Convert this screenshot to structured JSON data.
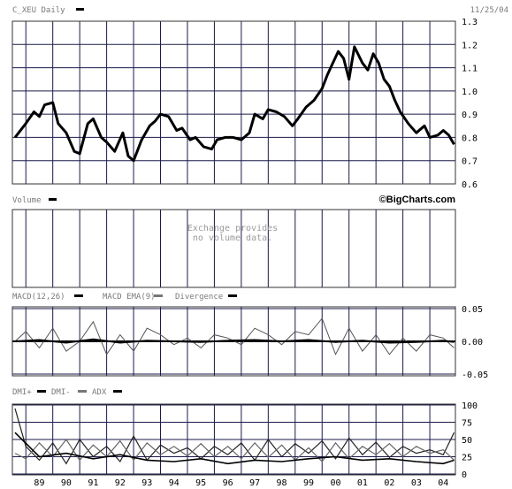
{
  "header": {
    "symbol_label": "C_XEU Daily",
    "date": "11/25/04"
  },
  "brand": "©BigCharts.com",
  "volume": {
    "label": "Volume",
    "note_line1": "Exchange provides",
    "note_line2": "no volume data."
  },
  "x_axis": {
    "tick_labels": [
      "89",
      "90",
      "91",
      "92",
      "93",
      "94",
      "95",
      "96",
      "97",
      "98",
      "99",
      "00",
      "01",
      "02",
      "03",
      "04"
    ]
  },
  "legend": {
    "macd": [
      "MACD(12,26)",
      "MACD EMA(9)",
      "Divergence"
    ],
    "dmi": [
      "DMI+",
      "DMI-",
      "ADX"
    ]
  },
  "colors": {
    "grid": "#1a1a4a",
    "price": "#000000",
    "macd": "#555555",
    "dmi_plus": "#222222",
    "dmi_minus": "#666666"
  },
  "chart_data": [
    {
      "type": "line",
      "title": "C_XEU Daily",
      "ylim": [
        0.6,
        1.3
      ],
      "yticks": [
        "1.3",
        "1.2",
        "1.1",
        "1.0",
        "0.9",
        "0.8",
        "0.7",
        "0.6"
      ],
      "x": [
        1988.6,
        1989.0,
        1989.3,
        1989.5,
        1989.7,
        1990.0,
        1990.2,
        1990.5,
        1990.8,
        1991.0,
        1991.3,
        1991.5,
        1991.8,
        1992.0,
        1992.3,
        1992.6,
        1992.8,
        1993.0,
        1993.3,
        1993.6,
        1993.8,
        1994.0,
        1994.3,
        1994.6,
        1994.8,
        1995.1,
        1995.3,
        1995.6,
        1995.9,
        1996.1,
        1996.4,
        1996.7,
        1997.0,
        1997.3,
        1997.5,
        1997.8,
        1998.0,
        1998.3,
        1998.6,
        1998.9,
        1999.1,
        1999.4,
        1999.7,
        2000.0,
        2000.2,
        2000.4,
        2000.6,
        2000.8,
        2001.0,
        2001.2,
        2001.5,
        2001.7,
        2001.9,
        2002.1,
        2002.3,
        2002.5,
        2002.7,
        2002.9,
        2003.2,
        2003.5,
        2003.8,
        2004.0,
        2004.3,
        2004.5,
        2004.7,
        2004.9
      ],
      "values": [
        0.8,
        0.86,
        0.91,
        0.89,
        0.94,
        0.95,
        0.86,
        0.82,
        0.74,
        0.73,
        0.86,
        0.88,
        0.8,
        0.78,
        0.74,
        0.82,
        0.72,
        0.7,
        0.79,
        0.85,
        0.87,
        0.9,
        0.89,
        0.83,
        0.84,
        0.79,
        0.8,
        0.76,
        0.75,
        0.79,
        0.8,
        0.8,
        0.79,
        0.82,
        0.9,
        0.88,
        0.92,
        0.91,
        0.89,
        0.85,
        0.88,
        0.93,
        0.96,
        1.01,
        1.07,
        1.12,
        1.17,
        1.14,
        1.05,
        1.19,
        1.12,
        1.09,
        1.16,
        1.12,
        1.05,
        1.02,
        0.96,
        0.91,
        0.86,
        0.82,
        0.85,
        0.8,
        0.81,
        0.83,
        0.81,
        0.77
      ]
    },
    {
      "type": "line",
      "title": "MACD(12,26)",
      "ylim": [
        -0.05,
        0.05
      ],
      "yticks": [
        "0.05",
        "0.00",
        "-0.05"
      ],
      "series": [
        {
          "name": "MACD(12,26)",
          "x": [
            1988.6,
            1989.0,
            1989.5,
            1990.0,
            1990.5,
            1991.0,
            1991.5,
            1992.0,
            1992.5,
            1993.0,
            1993.5,
            1994.0,
            1994.5,
            1995.0,
            1995.5,
            1996.0,
            1996.5,
            1997.0,
            1997.5,
            1998.0,
            1998.5,
            1999.0,
            1999.5,
            2000.0,
            2000.5,
            2001.0,
            2001.5,
            2002.0,
            2002.5,
            2003.0,
            2003.5,
            2004.0,
            2004.5,
            2004.9
          ],
          "values": [
            0.0,
            0.015,
            -0.01,
            0.02,
            -0.015,
            0.0,
            0.03,
            -0.02,
            0.01,
            -0.015,
            0.02,
            0.01,
            -0.005,
            0.005,
            -0.01,
            0.01,
            0.005,
            -0.005,
            0.02,
            0.01,
            -0.005,
            0.015,
            0.01,
            0.035,
            -0.02,
            0.02,
            -0.015,
            0.01,
            -0.02,
            0.005,
            -0.015,
            0.01,
            0.005,
            -0.01
          ]
        },
        {
          "name": "MACD EMA(9)",
          "x": [
            1988.6,
            1989.5,
            1990.5,
            1991.5,
            1992.5,
            1993.5,
            1994.5,
            1995.5,
            1996.5,
            1997.5,
            1998.5,
            1999.5,
            2000.5,
            2001.5,
            2002.5,
            2003.5,
            2004.5,
            2004.9
          ],
          "values": [
            0.0,
            0.002,
            -0.002,
            0.003,
            -0.002,
            0.001,
            0.0,
            -0.001,
            0.001,
            0.002,
            0.0,
            0.002,
            -0.001,
            0.001,
            -0.002,
            -0.001,
            0.001,
            -0.001
          ]
        },
        {
          "name": "Divergence",
          "x": [
            1988.6,
            2004.9
          ],
          "values": [
            0.0,
            0.0
          ]
        }
      ]
    },
    {
      "type": "line",
      "title": "DMI",
      "ylim": [
        0,
        100
      ],
      "yticks": [
        "100",
        "75",
        "50",
        "25",
        "0"
      ],
      "series": [
        {
          "name": "DMI+",
          "x": [
            1988.6,
            1989.0,
            1989.5,
            1990.0,
            1990.5,
            1991.0,
            1991.5,
            1992.0,
            1992.5,
            1993.0,
            1993.5,
            1994.0,
            1994.5,
            1995.0,
            1995.5,
            1996.0,
            1996.5,
            1997.0,
            1997.5,
            1998.0,
            1998.5,
            1999.0,
            1999.5,
            2000.0,
            2000.5,
            2001.0,
            2001.5,
            2002.0,
            2002.5,
            2003.0,
            2003.5,
            2004.0,
            2004.5,
            2004.9
          ],
          "values": [
            95,
            40,
            20,
            45,
            15,
            50,
            25,
            40,
            18,
            55,
            20,
            42,
            30,
            38,
            22,
            40,
            28,
            45,
            20,
            50,
            25,
            44,
            30,
            48,
            22,
            52,
            28,
            46,
            24,
            40,
            30,
            35,
            28,
            60
          ]
        },
        {
          "name": "DMI-",
          "x": [
            1988.6,
            1989.0,
            1989.5,
            1990.0,
            1990.5,
            1991.0,
            1991.5,
            1992.0,
            1992.5,
            1993.0,
            1993.5,
            1994.0,
            1994.5,
            1995.0,
            1995.5,
            1996.0,
            1996.5,
            1997.0,
            1997.5,
            1998.0,
            1998.5,
            1999.0,
            1999.5,
            2000.0,
            2000.5,
            2001.0,
            2001.5,
            2002.0,
            2002.5,
            2003.0,
            2003.5,
            2004.0,
            2004.5,
            2004.9
          ],
          "values": [
            30,
            22,
            45,
            25,
            50,
            20,
            42,
            25,
            48,
            20,
            45,
            28,
            40,
            26,
            44,
            25,
            40,
            22,
            45,
            24,
            42,
            20,
            38,
            18,
            45,
            22,
            40,
            28,
            44,
            25,
            40,
            30,
            35,
            20
          ]
        },
        {
          "name": "ADX",
          "x": [
            1988.6,
            1989.5,
            1990.5,
            1991.5,
            1992.5,
            1993.5,
            1994.5,
            1995.5,
            1996.5,
            1997.5,
            1998.5,
            1999.5,
            2000.5,
            2001.5,
            2002.5,
            2003.5,
            2004.5,
            2004.9
          ],
          "values": [
            60,
            25,
            30,
            22,
            28,
            20,
            18,
            22,
            15,
            20,
            18,
            22,
            25,
            20,
            22,
            18,
            15,
            20
          ]
        }
      ]
    }
  ]
}
